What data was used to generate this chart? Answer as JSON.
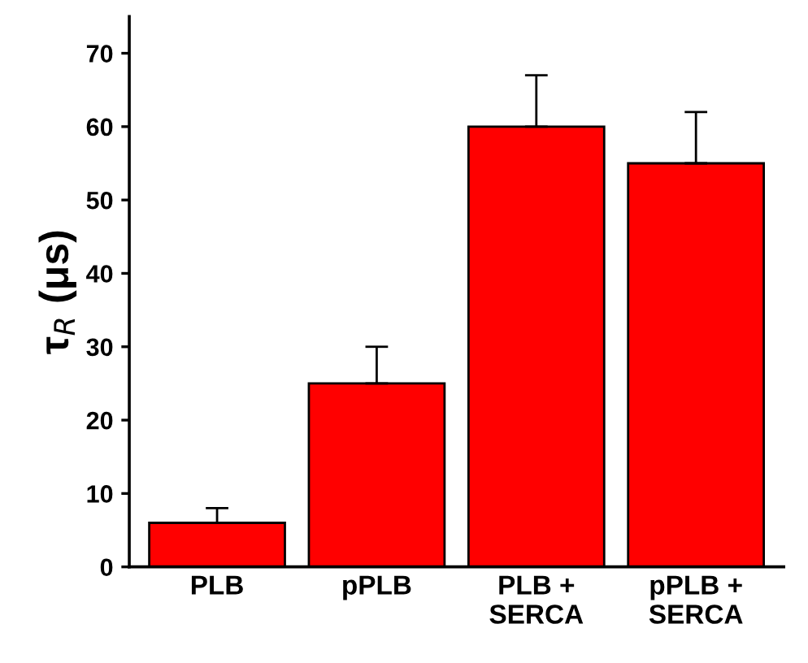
{
  "chart_data": {
    "type": "bar",
    "ylabel": "τ$_{R}$ (μs)",
    "categories": [
      "PLB",
      "pPLB",
      "PLB +\nSERCA",
      "pPLB +\nSERCA"
    ],
    "values": [
      6,
      25,
      60,
      55
    ],
    "errors": [
      [
        6,
        8
      ],
      [
        25,
        30
      ],
      [
        60,
        67
      ],
      [
        55,
        62
      ]
    ],
    "color": "#ff0000",
    "ylim": [
      0,
      75
    ],
    "yticks": [
      0,
      10,
      20,
      30,
      40,
      50,
      60,
      70
    ],
    "grid": false,
    "legend": false
  }
}
